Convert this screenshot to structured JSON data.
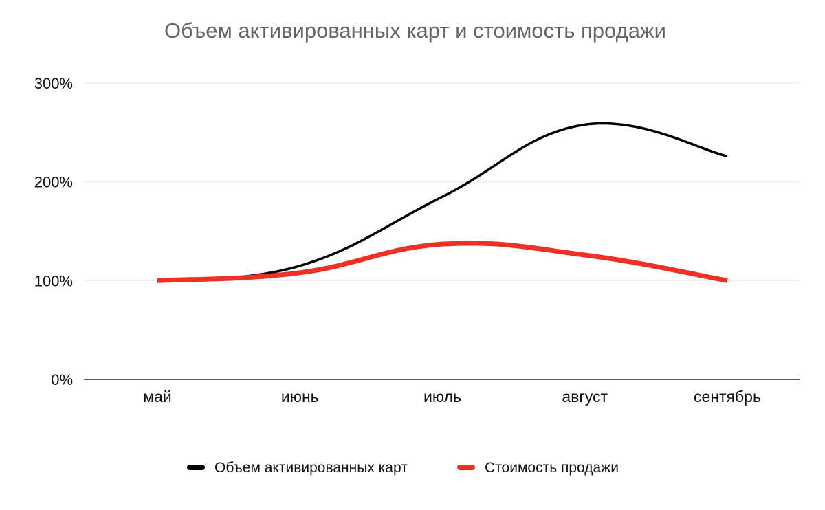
{
  "chart_data": {
    "type": "line",
    "title": "Объем активированных карт и стоимость продажи",
    "categories": [
      "май",
      "июнь",
      "июль",
      "август",
      "сентябрь"
    ],
    "y_ticks": [
      "0%",
      "100%",
      "200%",
      "300%"
    ],
    "ylim": [
      0,
      300
    ],
    "y_unit": "%",
    "grid": true,
    "legend_position": "bottom",
    "xlabel": "",
    "ylabel": "",
    "series": [
      {
        "name": "Объем активированных карт",
        "color": "#000000",
        "values": [
          100,
          115,
          185,
          258,
          226
        ]
      },
      {
        "name": "Стоимость продажи",
        "color": "#ee3124",
        "values": [
          100,
          108,
          137,
          126,
          100
        ]
      }
    ]
  }
}
